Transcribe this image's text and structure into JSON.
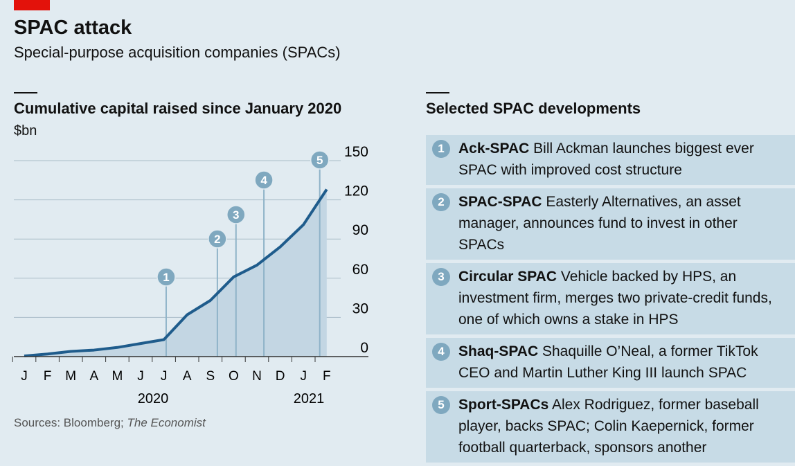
{
  "header": {
    "title": "SPAC attack",
    "subtitle": "Special-purpose acquisition companies (SPACs)"
  },
  "chart_data": {
    "type": "line",
    "title": "Cumulative capital raised since January 2020",
    "y_label": "$bn",
    "categories": [
      "J",
      "F",
      "M",
      "A",
      "M",
      "J",
      "J",
      "A",
      "S",
      "O",
      "N",
      "D",
      "J",
      "F"
    ],
    "years": [
      "2020",
      "2021"
    ],
    "values": [
      0.5,
      2,
      4,
      5,
      7,
      10,
      13,
      32,
      43,
      61,
      70,
      84,
      101,
      128
    ],
    "color": "#1f5c8c",
    "area_color": "#c3d6e3",
    "ylim": [
      0,
      150
    ],
    "yticks": [
      0,
      30,
      60,
      90,
      120,
      150
    ],
    "grid": true,
    "annotations": [
      "1",
      "2",
      "3",
      "4",
      "5"
    ]
  },
  "developments": {
    "title": "Selected SPAC developments",
    "items": [
      {
        "number": "1",
        "title": "Ack-SPAC",
        "text": "Bill Ackman launches biggest ever SPAC with improved cost structure"
      },
      {
        "number": "2",
        "title": "SPAC-SPAC",
        "text": "Easterly Alternatives, an asset manager, announces fund to invest in other SPACs"
      },
      {
        "number": "3",
        "title": "Circular SPAC",
        "text": "Vehicle backed by HPS, an investment firm, merges two private-credit funds, one of which owns a stake in HPS"
      },
      {
        "number": "4",
        "title": "Shaq-SPAC",
        "text": "Shaquille O’Neal, a former TikTok CEO and Martin Luther King III launch SPAC"
      },
      {
        "number": "5",
        "title": "Sport-SPACs",
        "text": "Alex Rodriguez, former baseball player, backs SPAC; Colin Kaepernick, former football quarterback, sponsors another"
      }
    ]
  },
  "source": {
    "prefix": "Sources: Bloomberg;",
    "italic": "The Economist"
  }
}
